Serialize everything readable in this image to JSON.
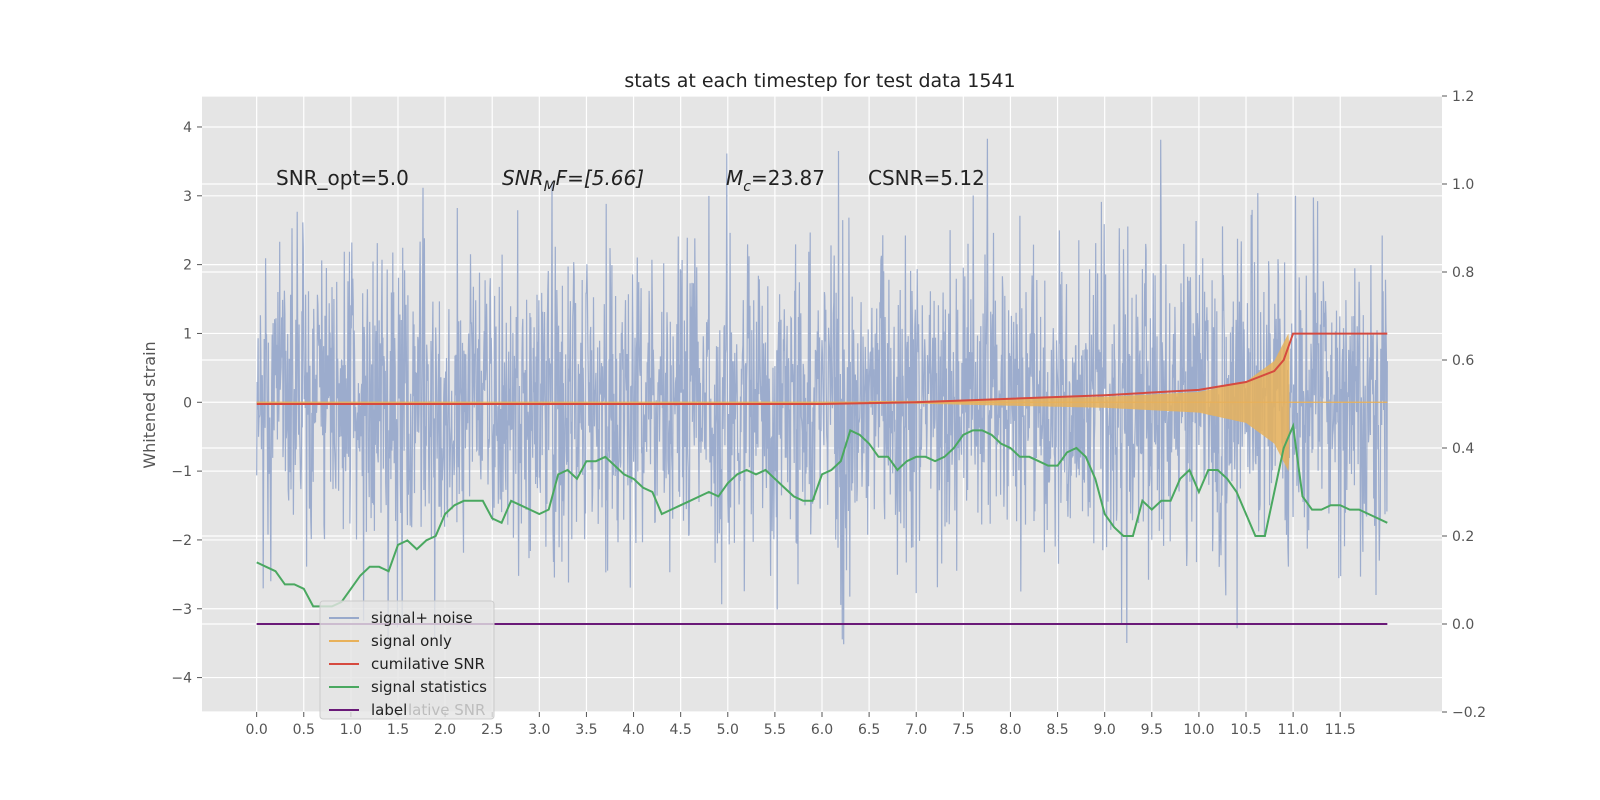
{
  "figure": {
    "title": "stats at each timestep for test data 1541",
    "annotations": {
      "snr_opt": "SNR_opt=5.0",
      "snr_mf_italic": "SNR",
      "snr_mf_sub": "M",
      "snr_mf_tail": "F=[5.66]",
      "mc_italic": "M",
      "mc_sub": "c",
      "mc_tail": "=23.87",
      "csnr": "CSNR=5.12"
    }
  },
  "chart_data": {
    "type": "line",
    "title": "stats at each timestep for test data 1541",
    "xlabel": "",
    "ylabel": "Whitened strain",
    "y2label": "",
    "xlim": [
      -0.58,
      12.58
    ],
    "ylim": [
      -4.5,
      4.45
    ],
    "y2lim": [
      -0.2,
      1.2
    ],
    "x_ticks": [
      "0.0",
      "0.5",
      "1.0",
      "1.5",
      "2.0",
      "2.5",
      "3.0",
      "3.5",
      "4.0",
      "4.5",
      "5.0",
      "5.5",
      "6.0",
      "6.5",
      "7.0",
      "7.5",
      "8.0",
      "8.5",
      "9.0",
      "9.5",
      "10.0",
      "10.5",
      "11.0",
      "11.5"
    ],
    "y_ticks": [
      "4",
      "3",
      "2",
      "1",
      "0",
      "−1",
      "−2",
      "−3",
      "−4"
    ],
    "y2_ticks": [
      "1.2",
      "1.0",
      "0.8",
      "0.6",
      "0.4",
      "0.2",
      "0.0",
      "−0.2"
    ],
    "grid": true,
    "legend_position": "lower-left",
    "colors": {
      "axes_bg": "#e5e5e5",
      "grid": "#ffffff",
      "noise": "#98a9cb",
      "signal": "#e8b15a",
      "cumulative_snr": "#d64a3f",
      "statistics": "#4aa860",
      "label": "#6a1a78"
    },
    "series": [
      {
        "name": "signal+ noise",
        "axis": "left",
        "description_values": "noise envelope",
        "x": [
          0.0,
          12.0
        ],
        "y_upper_typical": 2.5,
        "y_lower_typical": -2.5,
        "y_max": 4.05,
        "y_min": -4.1
      },
      {
        "name": "signal only",
        "axis": "left",
        "x": [
          0.0,
          7.0,
          8.0,
          9.0,
          10.0,
          10.5,
          10.8,
          10.95,
          11.0,
          12.0
        ],
        "y_amplitude": [
          0.0,
          0.02,
          0.05,
          0.08,
          0.15,
          0.3,
          0.6,
          1.0,
          0.0,
          0.0
        ]
      },
      {
        "name": "cumilative SNR",
        "axis": "right",
        "x": [
          0.0,
          6.0,
          7.0,
          8.0,
          9.0,
          10.0,
          10.5,
          10.8,
          10.9,
          10.95,
          11.0,
          12.0
        ],
        "y": [
          0.5,
          0.5,
          0.504,
          0.512,
          0.52,
          0.532,
          0.55,
          0.575,
          0.6,
          0.63,
          0.66,
          0.66
        ]
      },
      {
        "name": "signal statistics",
        "axis": "right",
        "x": [
          0.0,
          0.1,
          0.2,
          0.3,
          0.4,
          0.5,
          0.6,
          0.7,
          0.8,
          0.9,
          1.0,
          1.1,
          1.2,
          1.3,
          1.4,
          1.5,
          1.6,
          1.7,
          1.8,
          1.9,
          2.0,
          2.1,
          2.2,
          2.3,
          2.4,
          2.5,
          2.6,
          2.7,
          2.8,
          2.9,
          3.0,
          3.1,
          3.2,
          3.3,
          3.4,
          3.5,
          3.6,
          3.7,
          3.8,
          3.9,
          4.0,
          4.1,
          4.2,
          4.3,
          4.4,
          4.5,
          4.6,
          4.7,
          4.8,
          4.9,
          5.0,
          5.1,
          5.2,
          5.3,
          5.4,
          5.5,
          5.6,
          5.7,
          5.8,
          5.9,
          6.0,
          6.1,
          6.2,
          6.3,
          6.4,
          6.5,
          6.6,
          6.7,
          6.8,
          6.9,
          7.0,
          7.1,
          7.2,
          7.3,
          7.4,
          7.5,
          7.6,
          7.7,
          7.8,
          7.9,
          8.0,
          8.1,
          8.2,
          8.3,
          8.4,
          8.5,
          8.6,
          8.7,
          8.8,
          8.9,
          9.0,
          9.1,
          9.2,
          9.3,
          9.4,
          9.5,
          9.6,
          9.7,
          9.8,
          9.9,
          10.0,
          10.1,
          10.2,
          10.3,
          10.4,
          10.5,
          10.6,
          10.7,
          10.8,
          10.9,
          11.0,
          11.1,
          11.2,
          11.3,
          11.4,
          11.5,
          11.6,
          11.7,
          11.8,
          11.9,
          12.0
        ],
        "y": [
          0.14,
          0.13,
          0.12,
          0.09,
          0.09,
          0.08,
          0.04,
          0.04,
          0.04,
          0.05,
          0.08,
          0.11,
          0.13,
          0.13,
          0.12,
          0.18,
          0.19,
          0.17,
          0.19,
          0.2,
          0.25,
          0.27,
          0.28,
          0.28,
          0.28,
          0.24,
          0.23,
          0.28,
          0.27,
          0.26,
          0.25,
          0.26,
          0.34,
          0.35,
          0.33,
          0.37,
          0.37,
          0.38,
          0.36,
          0.34,
          0.33,
          0.31,
          0.3,
          0.25,
          0.26,
          0.27,
          0.28,
          0.29,
          0.3,
          0.29,
          0.32,
          0.34,
          0.35,
          0.34,
          0.35,
          0.33,
          0.31,
          0.29,
          0.28,
          0.28,
          0.34,
          0.35,
          0.37,
          0.44,
          0.43,
          0.41,
          0.38,
          0.38,
          0.35,
          0.37,
          0.38,
          0.38,
          0.37,
          0.38,
          0.4,
          0.43,
          0.44,
          0.44,
          0.43,
          0.41,
          0.4,
          0.38,
          0.38,
          0.37,
          0.36,
          0.36,
          0.39,
          0.4,
          0.38,
          0.33,
          0.25,
          0.22,
          0.2,
          0.2,
          0.28,
          0.26,
          0.28,
          0.28,
          0.33,
          0.35,
          0.3,
          0.35,
          0.35,
          0.33,
          0.3,
          0.25,
          0.2,
          0.2,
          0.3,
          0.4,
          0.45,
          0.29,
          0.26,
          0.26,
          0.27,
          0.27,
          0.26,
          0.26,
          0.25,
          0.24,
          0.23
        ]
      },
      {
        "name": "label",
        "axis": "right",
        "x": [
          0.0,
          12.0
        ],
        "y": [
          0.0,
          0.0
        ]
      }
    ],
    "legend_entries": [
      "signal+ noise",
      "signal only",
      "cumilative SNR",
      "signal statistics",
      "label"
    ],
    "legend_hidden_text": "lative SNR"
  }
}
